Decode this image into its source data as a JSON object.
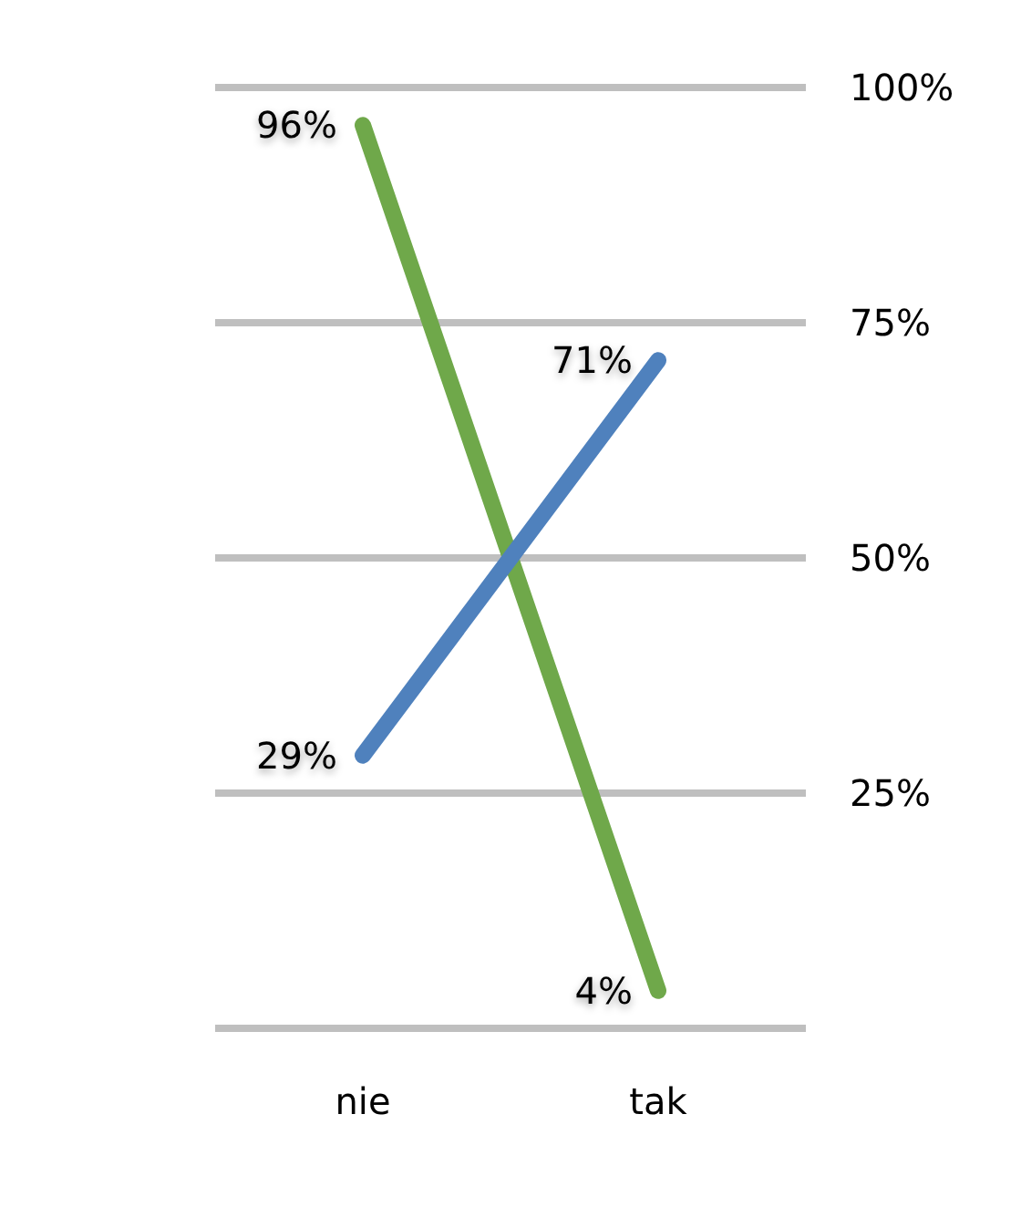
{
  "chart_data": {
    "type": "line",
    "categories": [
      "nie",
      "tak"
    ],
    "series": [
      {
        "color": "#6fa84a",
        "values": [
          96,
          4
        ],
        "value_labels": [
          "96%",
          "4%"
        ]
      },
      {
        "color": "#4f81bd",
        "values": [
          29,
          71
        ],
        "value_labels": [
          "29%",
          "71%"
        ]
      }
    ],
    "ylim": [
      0,
      100
    ],
    "yticks": [
      {
        "value": 0,
        "label": null
      },
      {
        "value": 25,
        "label": "25%"
      },
      {
        "value": 50,
        "label": "50%"
      },
      {
        "value": 75,
        "label": "75%"
      },
      {
        "value": 100,
        "label": "100%"
      }
    ],
    "grid": "y",
    "marker": "none",
    "line_style": "solid"
  }
}
